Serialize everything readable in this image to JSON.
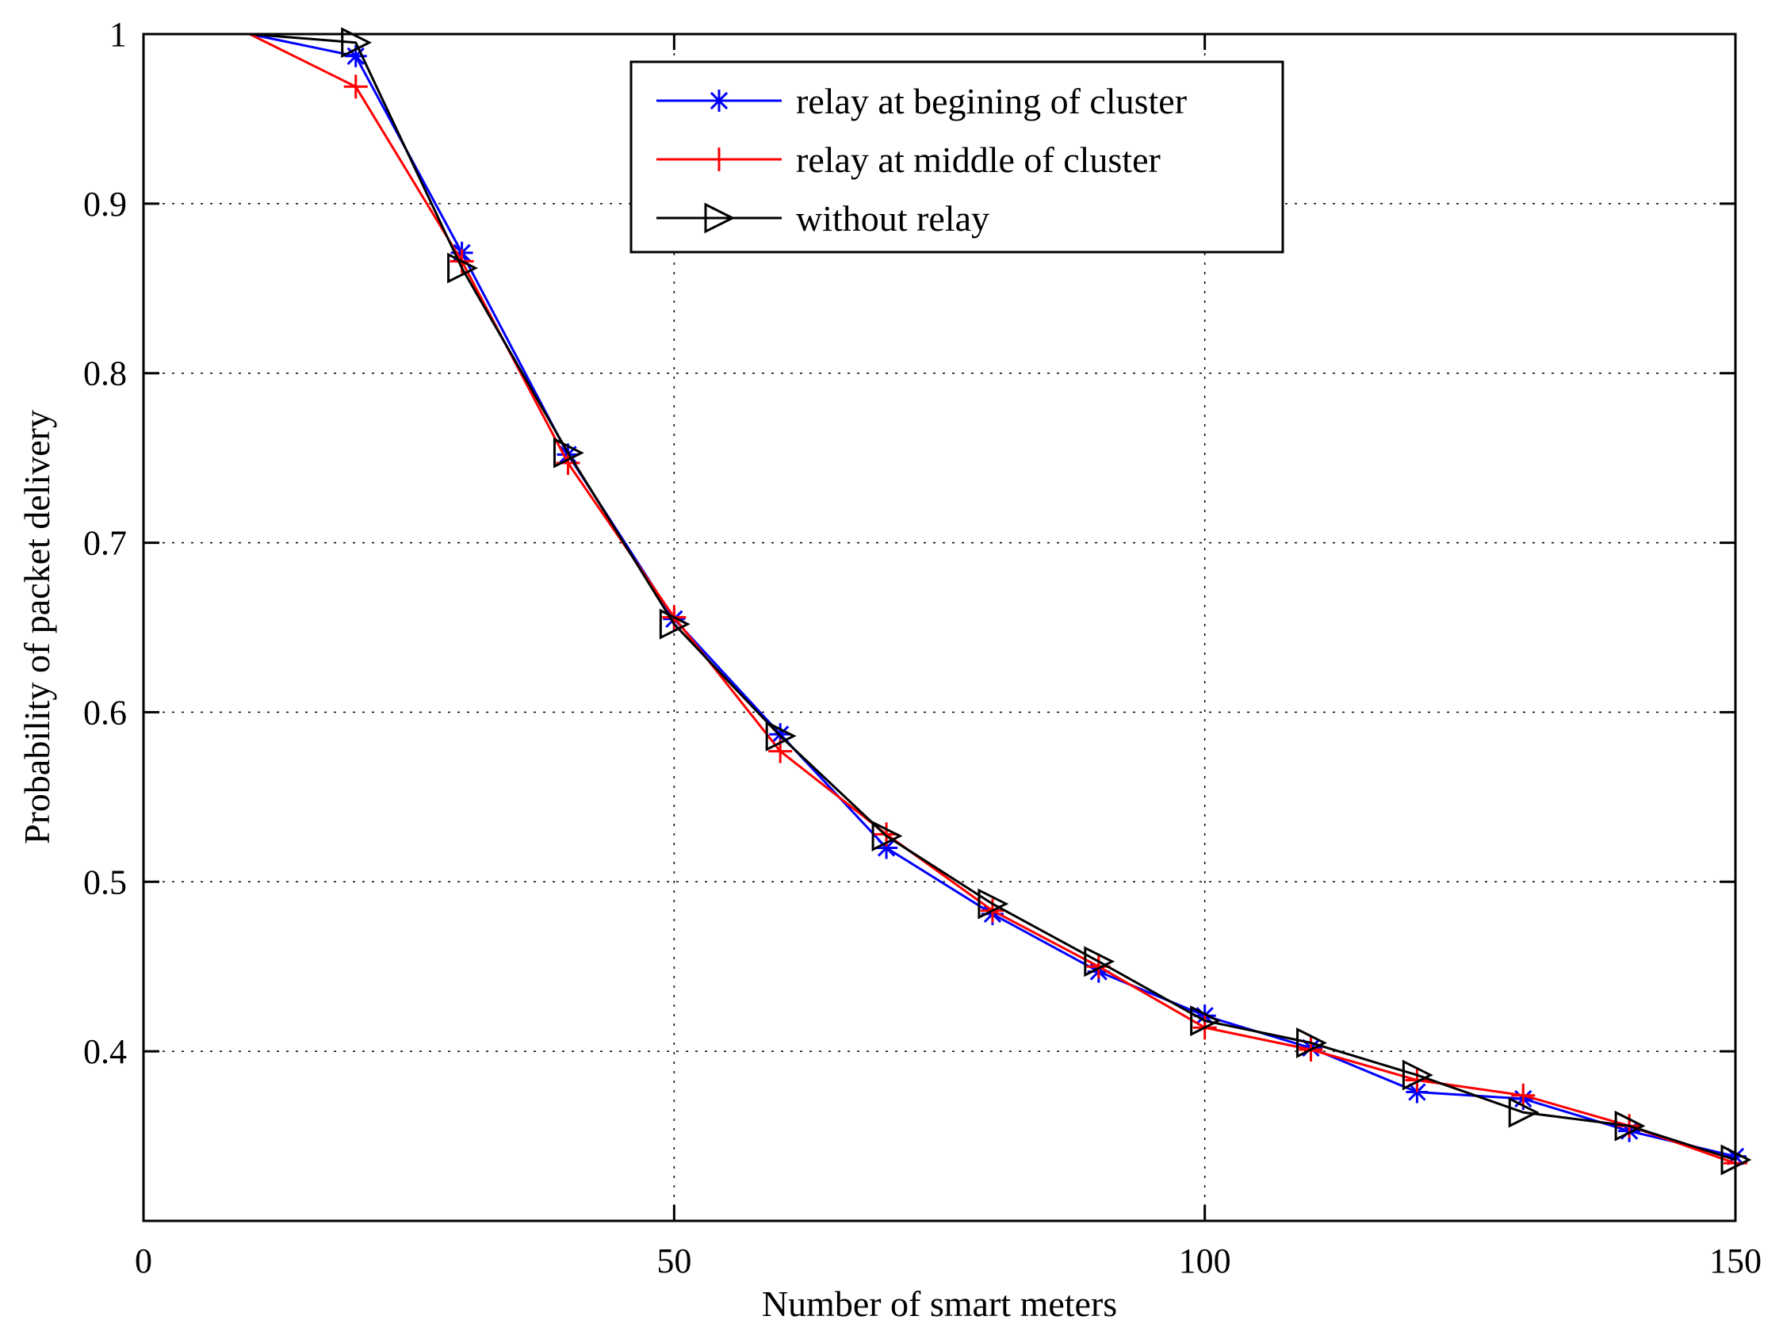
{
  "chart_data": {
    "type": "line",
    "title": "",
    "xlabel": "Number of smart meters",
    "ylabel": "Probability of packet delivery",
    "xlim": [
      0,
      150
    ],
    "ylim": [
      0.3,
      1.0
    ],
    "xticks": [
      0,
      50,
      100,
      150
    ],
    "xtick_labels": [
      "0",
      "50",
      "100",
      "150"
    ],
    "yticks": [
      0.4,
      0.5,
      0.6,
      0.7,
      0.8,
      0.9,
      1.0
    ],
    "ytick_labels": [
      "0.4",
      "0.5",
      "0.6",
      "0.7",
      "0.8",
      "0.9",
      "1"
    ],
    "grid": true,
    "legend_position": "top-center",
    "series": [
      {
        "name": "relay at begining of cluster",
        "color": "#0000ff",
        "marker": "asterisk",
        "x": [
          10,
          20,
          30,
          40,
          50,
          60,
          70,
          80,
          90,
          100,
          110,
          120,
          130,
          140,
          150
        ],
        "y": [
          1.0,
          0.987,
          0.871,
          0.752,
          0.655,
          0.587,
          0.52,
          0.481,
          0.447,
          0.421,
          0.402,
          0.376,
          0.372,
          0.353,
          0.338
        ]
      },
      {
        "name": "relay at middle of cluster",
        "color": "#ff0000",
        "marker": "plus",
        "x": [
          10,
          20,
          30,
          40,
          50,
          60,
          70,
          80,
          90,
          100,
          110,
          120,
          130,
          140,
          150
        ],
        "y": [
          1.0,
          0.969,
          0.866,
          0.747,
          0.656,
          0.577,
          0.528,
          0.483,
          0.45,
          0.414,
          0.401,
          0.383,
          0.374,
          0.356,
          0.334
        ]
      },
      {
        "name": "without relay",
        "color": "#000000",
        "marker": "triangle-right",
        "x": [
          10,
          20,
          30,
          40,
          50,
          60,
          70,
          80,
          90,
          100,
          110,
          120,
          130,
          140,
          150
        ],
        "y": [
          1.0,
          0.995,
          0.862,
          0.753,
          0.652,
          0.586,
          0.527,
          0.487,
          0.453,
          0.418,
          0.405,
          0.386,
          0.364,
          0.356,
          0.336
        ]
      }
    ]
  }
}
